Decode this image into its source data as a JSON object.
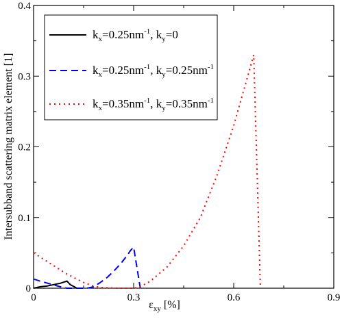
{
  "chart_data": {
    "type": "line",
    "title": "",
    "xlabel": "ε",
    "xlabel_sub": "xy",
    "xlabel_unit": "[%]",
    "ylabel": "Intersubband scattering matrix element [1]",
    "xlim": [
      0,
      0.9
    ],
    "ylim": [
      0,
      0.4
    ],
    "xticks": [
      0,
      0.3,
      0.6,
      0.9
    ],
    "xtick_labels": [
      "0",
      "0.3",
      "0.6",
      "0.9"
    ],
    "yticks": [
      0,
      0.1,
      0.2,
      0.3,
      0.4
    ],
    "ytick_labels": [
      "0",
      "0.1",
      "0.2",
      "0.3",
      "0.4"
    ],
    "grid": false,
    "legend_position": "top-left",
    "series": [
      {
        "legend_parts": [
          "k",
          "x",
          "=0.25nm",
          "-1",
          ", k",
          "y",
          "=0"
        ],
        "color": "#000000",
        "style": "solid",
        "x": [
          0,
          0.02,
          0.04,
          0.06,
          0.08,
          0.1,
          0.11,
          0.13
        ],
        "y": [
          0,
          0.002,
          0.003,
          0.005,
          0.007,
          0.01,
          0.005,
          0
        ]
      },
      {
        "legend_parts": [
          "k",
          "x",
          "=0.25nm",
          "-1",
          ", k",
          "y",
          "=0.25nm",
          "-1"
        ],
        "color": "#0000ee",
        "style": "dashed",
        "x": [
          0,
          0.02,
          0.05,
          0.08,
          0.1,
          0.12,
          0.14,
          0.16,
          0.18,
          0.2,
          0.22,
          0.24,
          0.26,
          0.28,
          0.29,
          0.3,
          0.32
        ],
        "y": [
          0.013,
          0.01,
          0.006,
          0.002,
          0,
          0,
          0,
          0,
          0.002,
          0.008,
          0.015,
          0.024,
          0.034,
          0.046,
          0.053,
          0.058,
          0
        ]
      },
      {
        "legend_parts": [
          "k",
          "x",
          "=0.35nm",
          "-1",
          ", k",
          "y",
          "=0.35nm",
          "-1"
        ],
        "color": "#ff0000",
        "style": "dotted",
        "x": [
          0,
          0.05,
          0.1,
          0.15,
          0.18,
          0.2,
          0.25,
          0.3,
          0.32,
          0.35,
          0.4,
          0.45,
          0.5,
          0.55,
          0.6,
          0.63,
          0.66,
          0.68
        ],
        "y": [
          0.05,
          0.035,
          0.02,
          0.008,
          0.003,
          0.001,
          0,
          0,
          0.002,
          0.01,
          0.03,
          0.06,
          0.1,
          0.16,
          0.23,
          0.28,
          0.33,
          0
        ]
      }
    ]
  }
}
